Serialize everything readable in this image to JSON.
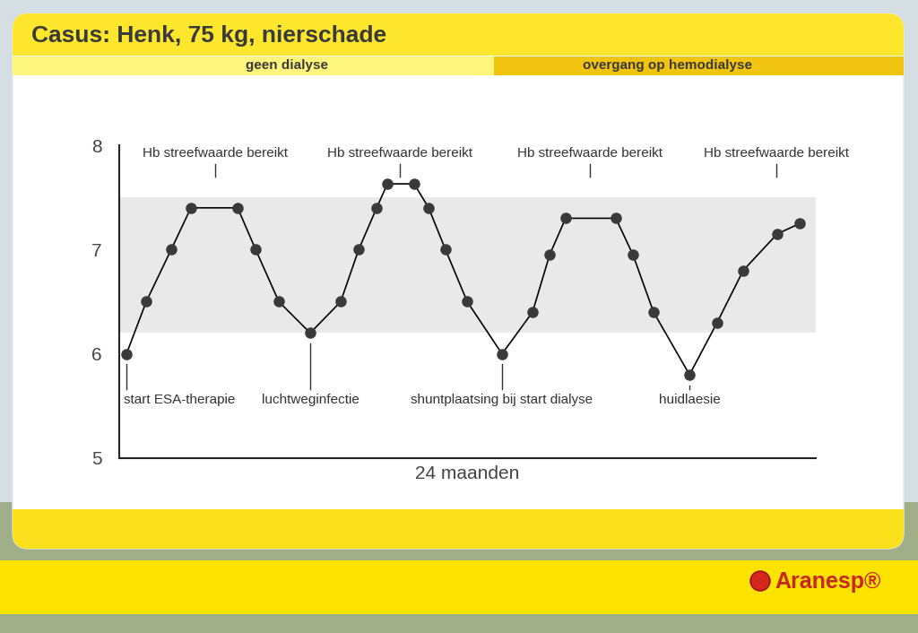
{
  "header": {
    "title": "Casus: Henk, 75 kg, nierschade",
    "phases": [
      "geen dialyse",
      "overgang op hemodialyse"
    ],
    "brand": "Aranesp®"
  },
  "chart_data": {
    "type": "line",
    "x": [
      0.25,
      0.93,
      1.79,
      2.47,
      4.08,
      4.7,
      5.5,
      6.58,
      7.63,
      8.25,
      8.87,
      9.24,
      10.16,
      10.66,
      11.24,
      11.99,
      13.19,
      14.24,
      14.83,
      15.38,
      17.11,
      17.7,
      18.41,
      19.65,
      20.6,
      21.5,
      22.67,
      23.45
    ],
    "values": [
      6.0,
      6.5,
      7.0,
      7.4,
      7.4,
      7.0,
      6.5,
      6.2,
      6.5,
      7.0,
      7.4,
      7.63,
      7.63,
      7.4,
      7.0,
      6.5,
      6.0,
      6.4,
      6.95,
      7.3,
      7.3,
      6.95,
      6.4,
      5.8,
      6.3,
      6.8,
      7.15,
      7.25
    ],
    "xlim": [
      0,
      24
    ],
    "ylim": [
      5,
      8
    ],
    "yticks": [
      5,
      6,
      7,
      8
    ],
    "x_label": "24 maanden",
    "tick_labels": "y",
    "color": "#000000",
    "marker": "circle",
    "line_style": "solid",
    "target_range": [
      6.2,
      7.5
    ],
    "annotations": [
      {
        "text": "Hb streefwaarde bereikt",
        "x": 3.31,
        "position": "above"
      },
      {
        "text": "Hb streefwaarde bereikt",
        "x": 9.67,
        "position": "above"
      },
      {
        "text": "Hb streefwaarde bereikt",
        "x": 16.22,
        "position": "above"
      },
      {
        "text": "Hb streefwaarde bereikt",
        "x": 22.64,
        "position": "above"
      },
      {
        "text": "start ESA-therapie",
        "x": 0.25,
        "position": "below"
      },
      {
        "text": "luchtweginfectie",
        "x": 6.58,
        "position": "below"
      },
      {
        "text": "shuntplaatsing bij start dialyse",
        "x": 13.19,
        "position": "below"
      },
      {
        "text": "huidlaesie",
        "x": 19.65,
        "position": "below"
      }
    ]
  }
}
